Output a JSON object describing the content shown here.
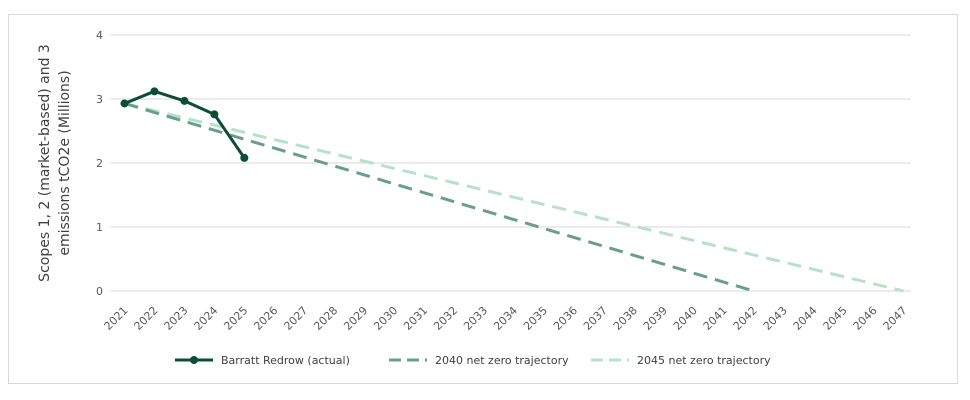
{
  "chart_data": {
    "type": "line",
    "title": "",
    "xlabel": "",
    "ylabel_lines": [
      "Scopes 1, 2 (market-based) and 3",
      "emissions tCO2e (Millions)"
    ],
    "x": [
      2021,
      2022,
      2023,
      2024,
      2025,
      2026,
      2027,
      2028,
      2029,
      2030,
      2031,
      2032,
      2033,
      2034,
      2035,
      2036,
      2037,
      2038,
      2039,
      2040,
      2041,
      2042,
      2043,
      2044,
      2045,
      2046,
      2047
    ],
    "x_tick_labels": [
      "2021",
      "2022",
      "2023",
      "2024",
      "2025",
      "2026",
      "2027",
      "2028",
      "2029",
      "2030",
      "2031",
      "2032",
      "2033",
      "2034",
      "2035",
      "2036",
      "2037",
      "2038",
      "2039",
      "2040",
      "2041",
      "2042",
      "2043",
      "2044",
      "2045",
      "2046",
      "2047"
    ],
    "ylim": [
      0,
      4
    ],
    "y_ticks": [
      "0",
      "1",
      "2",
      "3",
      "4"
    ],
    "grid": true,
    "legend_position": "bottom",
    "series": [
      {
        "name": "Barratt Redrow (actual)",
        "style": "solid-markers",
        "color": "#0b4d35",
        "points": [
          [
            2021,
            2.93
          ],
          [
            2022,
            3.12
          ],
          [
            2023,
            2.97
          ],
          [
            2024,
            2.76
          ],
          [
            2025,
            2.08
          ]
        ]
      },
      {
        "name": "2040 net zero trajectory",
        "style": "dashed",
        "color": "#6b9e8a",
        "points": [
          [
            2021,
            2.93
          ],
          [
            2042,
            0.0
          ]
        ]
      },
      {
        "name": "2045 net zero trajectory",
        "style": "dashed",
        "color": "#b5e2c8",
        "points": [
          [
            2021,
            2.93
          ],
          [
            2047,
            0.0
          ]
        ]
      }
    ]
  }
}
